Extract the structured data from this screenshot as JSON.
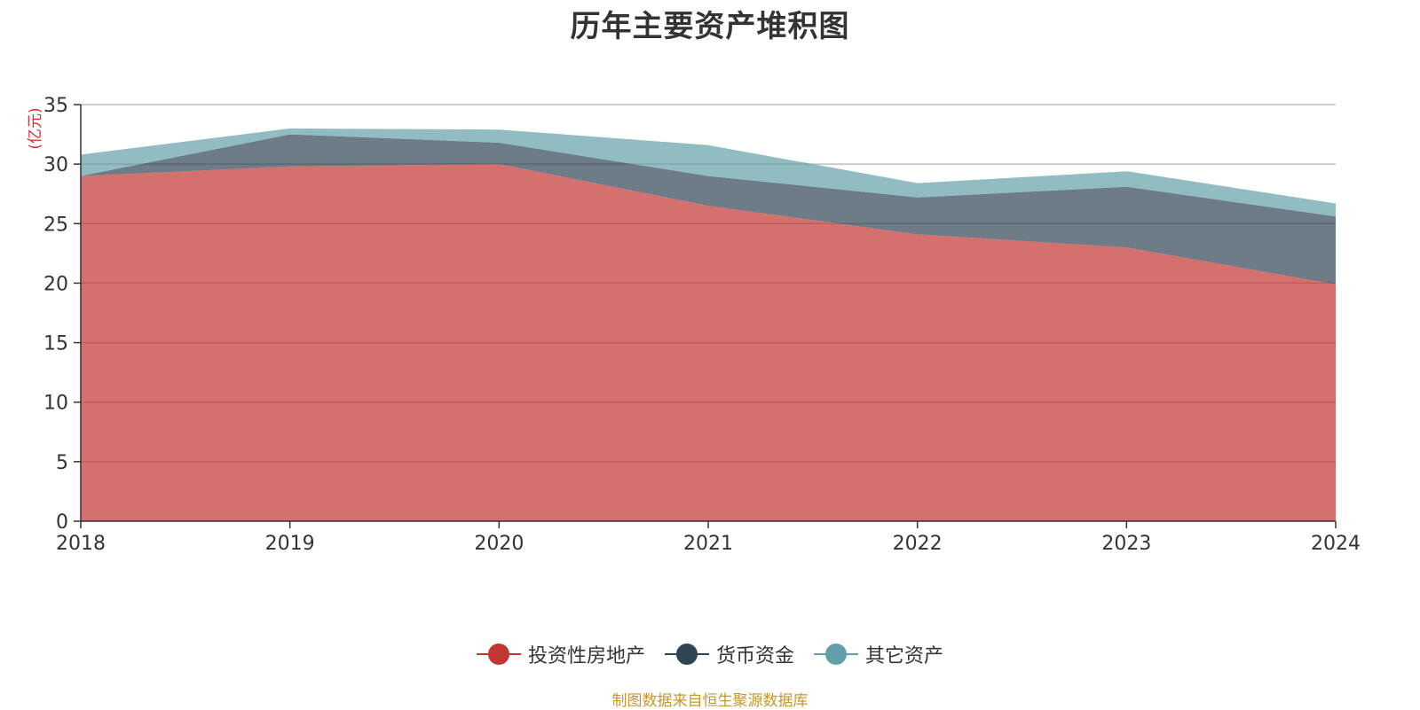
{
  "chart_data": {
    "type": "area",
    "stacked": true,
    "title": "历年主要资产堆积图",
    "ylabel": "(亿元)",
    "categories": [
      "2018",
      "2019",
      "2020",
      "2021",
      "2022",
      "2023",
      "2024"
    ],
    "ylim": [
      0,
      35
    ],
    "yticks": [
      0,
      5,
      10,
      15,
      20,
      25,
      30,
      35
    ],
    "grid": true,
    "legend_position": "bottom",
    "series": [
      {
        "name": "投资性房地产",
        "color": "#c23531",
        "values": [
          29.0,
          29.8,
          30.0,
          26.5,
          24.1,
          23.0,
          19.9
        ]
      },
      {
        "name": "货币资金",
        "color": "#2f4554",
        "values": [
          0.0,
          2.7,
          1.8,
          2.5,
          3.1,
          5.1,
          5.7
        ]
      },
      {
        "name": "其它资产",
        "color": "#61a0a8",
        "values": [
          1.8,
          0.5,
          1.1,
          2.6,
          1.2,
          1.3,
          1.1
        ]
      }
    ]
  },
  "legend": {
    "items": [
      {
        "label": "投资性房地产"
      },
      {
        "label": "货币资金"
      },
      {
        "label": "其它资产"
      }
    ]
  },
  "footer": {
    "source": "制图数据来自恒生聚源数据库"
  }
}
